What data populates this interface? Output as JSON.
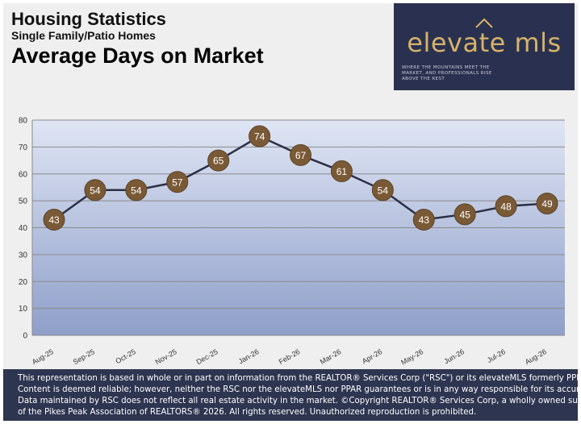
{
  "header": {
    "title": "Housing Statistics",
    "subtitle": "Single Family/Patio Homes",
    "metric": "Average Days on Market"
  },
  "logo": {
    "name": "elevate mls",
    "tagline": "WHERE THE MOUNTAINS MEET THE MARKET, AND PROFESSIONALS RISE ABOVE THE REST",
    "colors": {
      "background": "#2a3150",
      "accent": "#d6b26a"
    },
    "icon": "mountain-peak-icon"
  },
  "chart_data": {
    "type": "line",
    "categories": [
      "Aug-25",
      "Sep-25",
      "Oct-25",
      "Nov-25",
      "Dec-25",
      "Jan-26",
      "Feb-26",
      "Mar-26",
      "Apr-26",
      "May-26",
      "Jun-26",
      "Jul-26",
      "Aug-26"
    ],
    "series": [
      {
        "values": [
          43,
          54,
          54,
          57,
          65,
          74,
          67,
          61,
          54,
          43,
          45,
          48,
          49
        ]
      }
    ],
    "ylim": [
      0,
      80
    ],
    "yticks": [
      0,
      10,
      20,
      30,
      40,
      50,
      60,
      70,
      80
    ],
    "grid": true,
    "data_labels": true,
    "colors": {
      "line": "#2b2f45",
      "marker": "#7a5a36",
      "label": "#ffffff",
      "plot_top": "#dfe5f4",
      "plot_bottom": "#8f9fc9"
    }
  },
  "footer": {
    "lines": [
      "This representation is based in whole or in part on information from the REALTOR® Services Corp (\"RSC\") or its elevateMLS formerly PPMLS.",
      "Content is deemed reliable; however, neither the RSC nor the elevateMLS nor PPAR guarantees or is in any way responsible for its accuracy.",
      "Data maintained by RSC does not reflect all real estate activity in the market.  ©Copyright REALTOR® Services Corp, a wholly owned subsidiary",
      "of the Pikes Peak Association of REALTORS® 2026. All rights reserved. Unauthorized reproduction is prohibited."
    ]
  }
}
